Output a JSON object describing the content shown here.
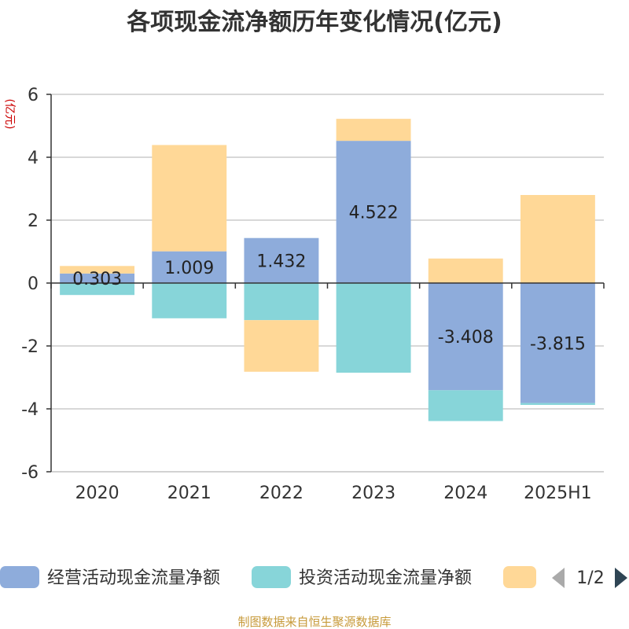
{
  "chart_data": {
    "type": "bar",
    "stacked": true,
    "title": "各项现金流净额历年变化情况(亿元)",
    "ylabel": "(亿元)",
    "categories": [
      "2020",
      "2021",
      "2022",
      "2023",
      "2024",
      "2025H1"
    ],
    "ylim": [
      -6,
      6
    ],
    "yticks": [
      6,
      4,
      2,
      0,
      -2,
      -4,
      -6
    ],
    "grid": true,
    "series": [
      {
        "name": "经营活动现金流量净额",
        "color": "#8eacdb",
        "values": [
          0.303,
          1.009,
          1.432,
          4.522,
          -3.408,
          -3.815
        ]
      },
      {
        "name": "投资活动现金流量净额",
        "color": "#87d5d9",
        "values": [
          -0.38,
          -1.12,
          -1.18,
          -2.85,
          -0.98,
          -0.06
        ]
      },
      {
        "name": "",
        "color": "#ffd897",
        "values": [
          0.24,
          3.38,
          -1.64,
          0.7,
          0.78,
          2.8
        ]
      }
    ],
    "data_labels": [
      "0.303",
      "1.009",
      "1.432",
      "4.522",
      "-3.408",
      "-3.815"
    ],
    "legend": {
      "position": "bottom",
      "page": "1/2"
    }
  },
  "source": "制图数据来自恒生聚源数据库"
}
